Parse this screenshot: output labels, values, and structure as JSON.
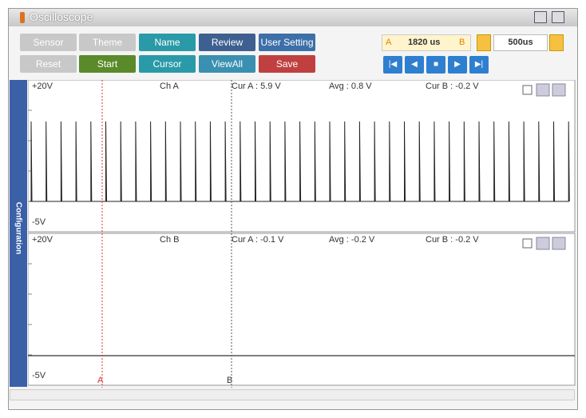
{
  "window": {
    "title": "Oscilloscope"
  },
  "toolbar": {
    "row1": [
      "Sensor",
      "Theme",
      "Name",
      "Review",
      "User Setting"
    ],
    "row2": [
      "Reset",
      "Start",
      "Cursor",
      "ViewAll",
      "Save"
    ]
  },
  "time": {
    "cursor_a": "A",
    "cursor_time": "1820 us",
    "cursor_b": "B",
    "time_div": "500us"
  },
  "sidebar": {
    "label": "Configuration"
  },
  "channels": [
    {
      "top": "+20V",
      "bottom": "-5V",
      "name": "Ch A",
      "cur_a": "Cur A : 5.9 V",
      "avg": "Avg : 0.8 V",
      "cur_b": "Cur B : -0.2 V"
    },
    {
      "top": "+20V",
      "bottom": "-5V",
      "name": "Ch B",
      "cur_a": "Cur A : -0.1 V",
      "avg": "Avg : -0.2 V",
      "cur_b": "Cur B : -0.2 V"
    }
  ],
  "cursors": {
    "a": "A",
    "b": "B"
  }
}
